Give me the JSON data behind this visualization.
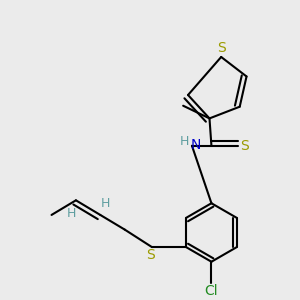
{
  "background_color": "#ebebeb",
  "figure_size": [
    3.0,
    3.0
  ],
  "dpi": 100,
  "atom_colors": {
    "S": "#9b9b00",
    "N": "#0000cc",
    "H": "#5f9ea0",
    "Cl": "#228B22",
    "C": "#000000"
  }
}
